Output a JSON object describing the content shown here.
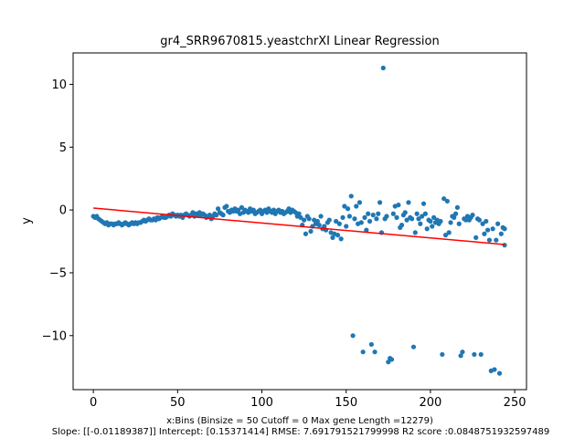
{
  "chart_data": {
    "type": "scatter",
    "title": "gr4_SRR9670815.yeastchrXI Linear Regression",
    "xlabel": "x:Bins  (Binsize = 50 Cutoff = 0 Max gene Length =12279)",
    "ylabel": "y",
    "footer": "Slope: [[-0.01189387]] Intercept: [0.15371414] RMSE: 7.691791521799998 R2 score :0.0848751932597489",
    "xlim": [
      -12,
      257
    ],
    "ylim": [
      -14.3,
      12.5
    ],
    "xticks": [
      0,
      50,
      100,
      150,
      200,
      250
    ],
    "xtick_labels": [
      "0",
      "50",
      "100",
      "150",
      "200",
      "250"
    ],
    "yticks": [
      -10,
      -5,
      0,
      5,
      10
    ],
    "ytick_labels": [
      "−10",
      "−5",
      "0",
      "5",
      "10"
    ],
    "grid": false,
    "colors": {
      "points": "#1f77b4",
      "regression": "#ff0000",
      "axes": "#000000"
    },
    "regression": {
      "slope": -0.01189387,
      "intercept": 0.15371414,
      "x_range": [
        0,
        244
      ]
    },
    "points": [
      [
        0,
        -0.5
      ],
      [
        1,
        -0.6
      ],
      [
        2,
        -0.5
      ],
      [
        3,
        -0.7
      ],
      [
        4,
        -0.8
      ],
      [
        5,
        -0.9
      ],
      [
        6,
        -1.0
      ],
      [
        7,
        -1.1
      ],
      [
        8,
        -1.0
      ],
      [
        9,
        -1.2
      ],
      [
        10,
        -1.1
      ],
      [
        11,
        -1.1
      ],
      [
        12,
        -1.2
      ],
      [
        13,
        -1.1
      ],
      [
        14,
        -1.1
      ],
      [
        15,
        -1.0
      ],
      [
        16,
        -1.1
      ],
      [
        17,
        -1.2
      ],
      [
        18,
        -1.1
      ],
      [
        19,
        -1.0
      ],
      [
        20,
        -1.1
      ],
      [
        21,
        -1.2
      ],
      [
        22,
        -1.1
      ],
      [
        23,
        -1.0
      ],
      [
        24,
        -1.1
      ],
      [
        25,
        -1.0
      ],
      [
        26,
        -1.1
      ],
      [
        27,
        -1.0
      ],
      [
        28,
        -1.0
      ],
      [
        29,
        -0.9
      ],
      [
        30,
        -0.8
      ],
      [
        31,
        -0.9
      ],
      [
        32,
        -0.8
      ],
      [
        33,
        -0.7
      ],
      [
        34,
        -0.8
      ],
      [
        35,
        -0.8
      ],
      [
        36,
        -0.7
      ],
      [
        37,
        -0.8
      ],
      [
        38,
        -0.6
      ],
      [
        39,
        -0.7
      ],
      [
        40,
        -0.6
      ],
      [
        41,
        -0.5
      ],
      [
        42,
        -0.6
      ],
      [
        43,
        -0.6
      ],
      [
        44,
        -0.5
      ],
      [
        45,
        -0.4
      ],
      [
        46,
        -0.5
      ],
      [
        47,
        -0.3
      ],
      [
        48,
        -0.4
      ],
      [
        49,
        -0.5
      ],
      [
        50,
        -0.4
      ],
      [
        51,
        -0.5
      ],
      [
        52,
        -0.4
      ],
      [
        53,
        -0.6
      ],
      [
        54,
        -0.4
      ],
      [
        55,
        -0.3
      ],
      [
        56,
        -0.4
      ],
      [
        57,
        -0.5
      ],
      [
        58,
        -0.4
      ],
      [
        59,
        -0.2
      ],
      [
        60,
        -0.5
      ],
      [
        61,
        -0.3
      ],
      [
        62,
        -0.4
      ],
      [
        63,
        -0.2
      ],
      [
        64,
        -0.4
      ],
      [
        65,
        -0.3
      ],
      [
        66,
        -0.4
      ],
      [
        67,
        -0.6
      ],
      [
        68,
        -0.5
      ],
      [
        69,
        -0.4
      ],
      [
        70,
        -0.7
      ],
      [
        71,
        -0.5
      ],
      [
        72,
        -0.3
      ],
      [
        73,
        -0.4
      ],
      [
        74,
        0.1
      ],
      [
        75,
        -0.2
      ],
      [
        76,
        -0.3
      ],
      [
        77,
        -0.4
      ],
      [
        78,
        0.2
      ],
      [
        79,
        0.3
      ],
      [
        80,
        -0.1
      ],
      [
        81,
        -0.2
      ],
      [
        82,
        0.0
      ],
      [
        83,
        -0.1
      ],
      [
        84,
        0.1
      ],
      [
        85,
        -0.1
      ],
      [
        86,
        0.0
      ],
      [
        87,
        -0.3
      ],
      [
        88,
        0.2
      ],
      [
        89,
        -0.2
      ],
      [
        90,
        0.0
      ],
      [
        91,
        -0.1
      ],
      [
        92,
        -0.2
      ],
      [
        93,
        0.1
      ],
      [
        94,
        -0.1
      ],
      [
        95,
        0.0
      ],
      [
        96,
        -0.3
      ],
      [
        97,
        -0.2
      ],
      [
        98,
        -0.1
      ],
      [
        99,
        0.0
      ],
      [
        100,
        -0.3
      ],
      [
        101,
        -0.1
      ],
      [
        102,
        0.0
      ],
      [
        103,
        -0.2
      ],
      [
        104,
        0.1
      ],
      [
        105,
        -0.1
      ],
      [
        106,
        -0.2
      ],
      [
        107,
        0.0
      ],
      [
        108,
        -0.3
      ],
      [
        109,
        -0.1
      ],
      [
        110,
        0.0
      ],
      [
        111,
        -0.2
      ],
      [
        112,
        -0.1
      ],
      [
        113,
        -0.3
      ],
      [
        114,
        -0.2
      ],
      [
        115,
        -0.1
      ],
      [
        116,
        0.1
      ],
      [
        117,
        -0.2
      ],
      [
        118,
        0.0
      ],
      [
        119,
        -0.1
      ],
      [
        120,
        -0.2
      ],
      [
        121,
        -0.5
      ],
      [
        122,
        -0.3
      ],
      [
        123,
        -0.6
      ],
      [
        124,
        -1.2
      ],
      [
        125,
        -0.8
      ],
      [
        126,
        -1.9
      ],
      [
        127,
        -0.5
      ],
      [
        128,
        -0.7
      ],
      [
        129,
        -1.7
      ],
      [
        130,
        -1.3
      ],
      [
        131,
        -0.8
      ],
      [
        132,
        -1.1
      ],
      [
        133,
        -0.9
      ],
      [
        134,
        -1.2
      ],
      [
        135,
        -0.5
      ],
      [
        136,
        -1.5
      ],
      [
        137,
        -1.3
      ],
      [
        138,
        -1.6
      ],
      [
        139,
        -1.0
      ],
      [
        140,
        -0.8
      ],
      [
        141,
        -1.8
      ],
      [
        142,
        -2.2
      ],
      [
        143,
        -1.9
      ],
      [
        144,
        -0.9
      ],
      [
        145,
        -2.0
      ],
      [
        146,
        -1.1
      ],
      [
        147,
        -2.3
      ],
      [
        148,
        -0.6
      ],
      [
        149,
        0.3
      ],
      [
        150,
        -1.3
      ],
      [
        151,
        0.1
      ],
      [
        152,
        -0.5
      ],
      [
        153,
        1.1
      ],
      [
        154,
        -10.0
      ],
      [
        155,
        -0.7
      ],
      [
        156,
        0.3
      ],
      [
        157,
        -1.1
      ],
      [
        158,
        0.6
      ],
      [
        159,
        -1.0
      ],
      [
        160,
        -11.3
      ],
      [
        161,
        -0.6
      ],
      [
        162,
        -1.6
      ],
      [
        163,
        -0.3
      ],
      [
        164,
        -0.9
      ],
      [
        165,
        -10.7
      ],
      [
        166,
        -0.4
      ],
      [
        167,
        -11.3
      ],
      [
        168,
        -0.7
      ],
      [
        169,
        -0.3
      ],
      [
        170,
        0.6
      ],
      [
        171,
        -1.8
      ],
      [
        172,
        11.3
      ],
      [
        173,
        -0.7
      ],
      [
        174,
        -0.5
      ],
      [
        175,
        -12.1
      ],
      [
        176,
        -11.8
      ],
      [
        177,
        -11.9
      ],
      [
        178,
        -0.3
      ],
      [
        179,
        0.3
      ],
      [
        180,
        -0.6
      ],
      [
        181,
        0.4
      ],
      [
        182,
        -1.4
      ],
      [
        183,
        -1.2
      ],
      [
        184,
        -0.4
      ],
      [
        185,
        -0.2
      ],
      [
        186,
        -0.8
      ],
      [
        187,
        0.6
      ],
      [
        188,
        -0.6
      ],
      [
        189,
        -0.7
      ],
      [
        190,
        -10.9
      ],
      [
        191,
        -1.8
      ],
      [
        192,
        -0.3
      ],
      [
        193,
        -0.7
      ],
      [
        194,
        -1.1
      ],
      [
        195,
        -0.5
      ],
      [
        196,
        0.5
      ],
      [
        197,
        -0.3
      ],
      [
        198,
        -1.5
      ],
      [
        199,
        -0.8
      ],
      [
        200,
        -0.9
      ],
      [
        201,
        -1.3
      ],
      [
        202,
        -0.6
      ],
      [
        203,
        -1.0
      ],
      [
        204,
        -0.8
      ],
      [
        205,
        -1.1
      ],
      [
        206,
        -0.9
      ],
      [
        207,
        -11.5
      ],
      [
        208,
        0.9
      ],
      [
        209,
        -2.0
      ],
      [
        210,
        0.7
      ],
      [
        211,
        -1.8
      ],
      [
        212,
        -1.0
      ],
      [
        213,
        -0.5
      ],
      [
        214,
        -0.6
      ],
      [
        215,
        -0.3
      ],
      [
        216,
        0.2
      ],
      [
        217,
        -1.1
      ],
      [
        218,
        -11.6
      ],
      [
        219,
        -11.3
      ],
      [
        220,
        -0.7
      ],
      [
        221,
        -0.8
      ],
      [
        222,
        -0.5
      ],
      [
        223,
        -0.8
      ],
      [
        224,
        -0.6
      ],
      [
        225,
        -0.4
      ],
      [
        226,
        -11.5
      ],
      [
        227,
        -2.2
      ],
      [
        228,
        -0.7
      ],
      [
        229,
        -0.8
      ],
      [
        230,
        -11.5
      ],
      [
        231,
        -1.1
      ],
      [
        232,
        -1.9
      ],
      [
        233,
        -0.9
      ],
      [
        234,
        -1.6
      ],
      [
        235,
        -2.4
      ],
      [
        236,
        -12.8
      ],
      [
        237,
        -1.5
      ],
      [
        238,
        -12.7
      ],
      [
        239,
        -2.4
      ],
      [
        240,
        -1.1
      ],
      [
        241,
        -13.0
      ],
      [
        242,
        -1.9
      ],
      [
        243,
        -1.4
      ],
      [
        244,
        -1.5
      ],
      [
        244,
        -2.8
      ]
    ]
  }
}
